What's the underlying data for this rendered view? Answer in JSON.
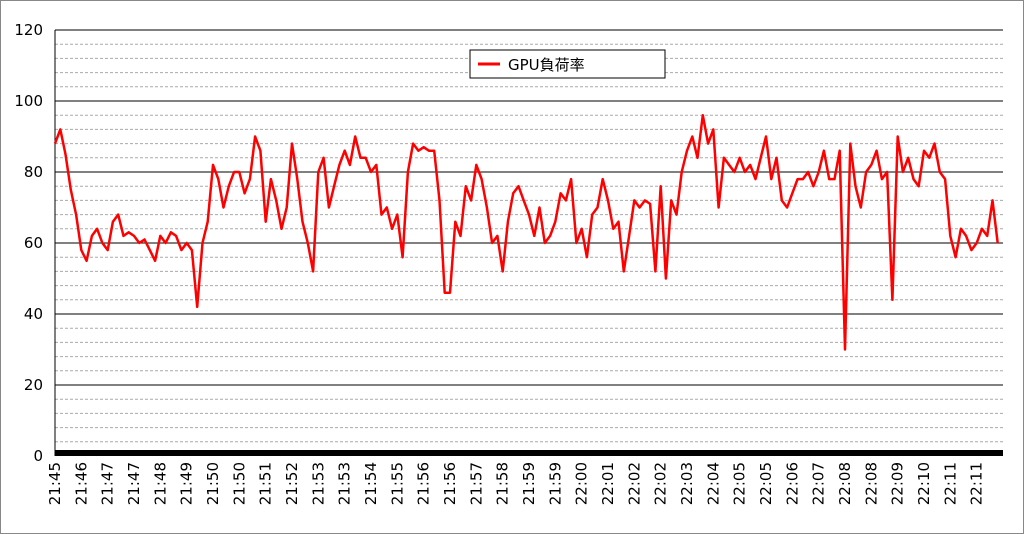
{
  "chart_data": {
    "type": "line",
    "categories": [
      "21:45",
      null,
      null,
      null,
      null,
      "21:46",
      null,
      null,
      null,
      null,
      "21:47",
      null,
      null,
      null,
      null,
      "21:47",
      null,
      null,
      null,
      null,
      "21:48",
      null,
      null,
      null,
      null,
      "21:49",
      null,
      null,
      null,
      null,
      "21:50",
      null,
      null,
      null,
      null,
      "21:50",
      null,
      null,
      null,
      null,
      "21:51",
      null,
      null,
      null,
      null,
      "21:52",
      null,
      null,
      null,
      null,
      "21:53",
      null,
      null,
      null,
      null,
      "21:53",
      null,
      null,
      null,
      null,
      "21:54",
      null,
      null,
      null,
      null,
      "21:55",
      null,
      null,
      null,
      null,
      "21:56",
      null,
      null,
      null,
      null,
      "21:56",
      null,
      null,
      null,
      null,
      "21:57",
      null,
      null,
      null,
      null,
      "21:58",
      null,
      null,
      null,
      null,
      "21:59",
      null,
      null,
      null,
      null,
      "21:59",
      null,
      null,
      null,
      null,
      "22:00",
      null,
      null,
      null,
      null,
      "22:01",
      null,
      null,
      null,
      null,
      "22:02",
      null,
      null,
      null,
      null,
      "22:02",
      null,
      null,
      null,
      null,
      "22:03",
      null,
      null,
      null,
      null,
      "22:04",
      null,
      null,
      null,
      null,
      "22:05",
      null,
      null,
      null,
      null,
      "22:05",
      null,
      null,
      null,
      null,
      "22:06",
      null,
      null,
      null,
      null,
      "22:07",
      null,
      null,
      null,
      null,
      "22:08",
      null,
      null,
      null,
      null,
      "22:08",
      null,
      null,
      null,
      null,
      "22:09",
      null,
      null,
      null,
      null,
      "22:10",
      null,
      null,
      null,
      null,
      "22:11",
      null,
      null,
      null,
      null,
      "22:11",
      null,
      null,
      null,
      null
    ],
    "series": [
      {
        "name": "GPU負荷率",
        "color": "#ff0000",
        "values": [
          88,
          92,
          85,
          75,
          68,
          58,
          55,
          62,
          64,
          60,
          58,
          66,
          68,
          62,
          63,
          62,
          60,
          61,
          58,
          55,
          62,
          60,
          63,
          62,
          58,
          60,
          58,
          42,
          60,
          66,
          82,
          78,
          70,
          76,
          80,
          80,
          74,
          78,
          90,
          86,
          66,
          78,
          72,
          64,
          70,
          88,
          78,
          66,
          60,
          52,
          80,
          84,
          70,
          76,
          82,
          86,
          82,
          90,
          84,
          84,
          80,
          82,
          68,
          70,
          64,
          68,
          56,
          80,
          88,
          86,
          87,
          86,
          86,
          72,
          46,
          46,
          66,
          62,
          76,
          72,
          82,
          78,
          70,
          60,
          62,
          52,
          66,
          74,
          76,
          72,
          68,
          62,
          70,
          60,
          62,
          66,
          74,
          72,
          78,
          60,
          64,
          56,
          68,
          70,
          78,
          72,
          64,
          66,
          52,
          62,
          72,
          70,
          72,
          71,
          52,
          76,
          50,
          72,
          68,
          80,
          86,
          90,
          84,
          96,
          88,
          92,
          70,
          84,
          82,
          80,
          84,
          80,
          82,
          78,
          84,
          90,
          78,
          84,
          72,
          70,
          74,
          78,
          78,
          80,
          76,
          80,
          86,
          78,
          78,
          86,
          30,
          88,
          76,
          70,
          80,
          82,
          86,
          78,
          80,
          44,
          90,
          80,
          84,
          78,
          76,
          86,
          84,
          88,
          80,
          78,
          62,
          56,
          64,
          62,
          58,
          60,
          64,
          62,
          72,
          60
        ]
      }
    ],
    "ylim": [
      0,
      120
    ],
    "yticks": [
      0,
      20,
      40,
      60,
      80,
      100,
      120
    ],
    "grid": true,
    "minor_grid": true,
    "legend": "top"
  }
}
